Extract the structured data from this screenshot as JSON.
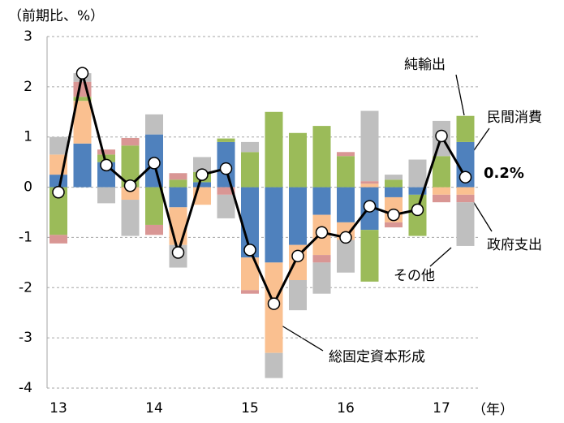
{
  "chart_data": {
    "type": "bar",
    "ylabel": "（前期比、%）",
    "xunit": "（年）",
    "categories": [
      "13",
      null,
      null,
      null,
      "14",
      null,
      null,
      null,
      "15",
      null,
      null,
      null,
      "16",
      null,
      null,
      null,
      "17",
      null
    ],
    "series": [
      {
        "name": "民間消費",
        "color": "#4f81bd",
        "values": [
          0.25,
          0.87,
          0.5,
          0,
          1.05,
          -0.4,
          0.1,
          0.9,
          -1.4,
          -1.5,
          -1.15,
          -0.55,
          -0.7,
          -0.85,
          -0.2,
          -0.15,
          0,
          0.9
        ]
      },
      {
        "name": "総固定資本形成",
        "color": "#fac090",
        "values": [
          0.4,
          0.85,
          0,
          -0.25,
          0,
          -0.75,
          -0.35,
          0,
          -0.65,
          -1.8,
          -0.7,
          -0.8,
          -0.35,
          0.07,
          -0.5,
          0,
          -0.15,
          -0.15
        ]
      },
      {
        "name": "純輸出",
        "color": "#9bbb59",
        "values": [
          -0.95,
          0.08,
          0.15,
          0.83,
          -0.75,
          0.15,
          0.2,
          0.07,
          0.7,
          1.5,
          1.08,
          1.22,
          0.62,
          -1.03,
          0.15,
          -0.82,
          0.62,
          0.52
        ]
      },
      {
        "name": "政府支出",
        "color": "#d99694",
        "values": [
          -0.17,
          0.3,
          0.1,
          0.15,
          -0.2,
          0.13,
          0,
          -0.15,
          -0.07,
          0,
          0,
          -0.15,
          0.08,
          0.05,
          -0.1,
          0,
          -0.15,
          -0.15
        ]
      },
      {
        "name": "その他",
        "color": "#bfbfbf",
        "values": [
          0.35,
          0.17,
          -0.32,
          -0.72,
          0.4,
          -0.45,
          0.3,
          -0.47,
          0.2,
          -0.5,
          -0.6,
          -0.62,
          -0.65,
          1.4,
          0.1,
          0.55,
          0.7,
          -0.87
        ]
      }
    ],
    "total": [
      -0.1,
      2.27,
      0.44,
      0.03,
      0.48,
      -1.3,
      0.25,
      0.37,
      -1.25,
      -2.32,
      -1.37,
      -0.9,
      -1.0,
      -0.38,
      -0.55,
      -0.45,
      1.02,
      0.2
    ],
    "annotations": [
      "純輸出",
      "民間消費",
      "0.2%",
      "政府支出",
      "その他",
      "総固定資本形成"
    ],
    "ylim": [
      -4,
      3
    ],
    "yticks": [
      -4,
      -3,
      -2,
      -1,
      0,
      1,
      2,
      3
    ],
    "grid": true
  }
}
